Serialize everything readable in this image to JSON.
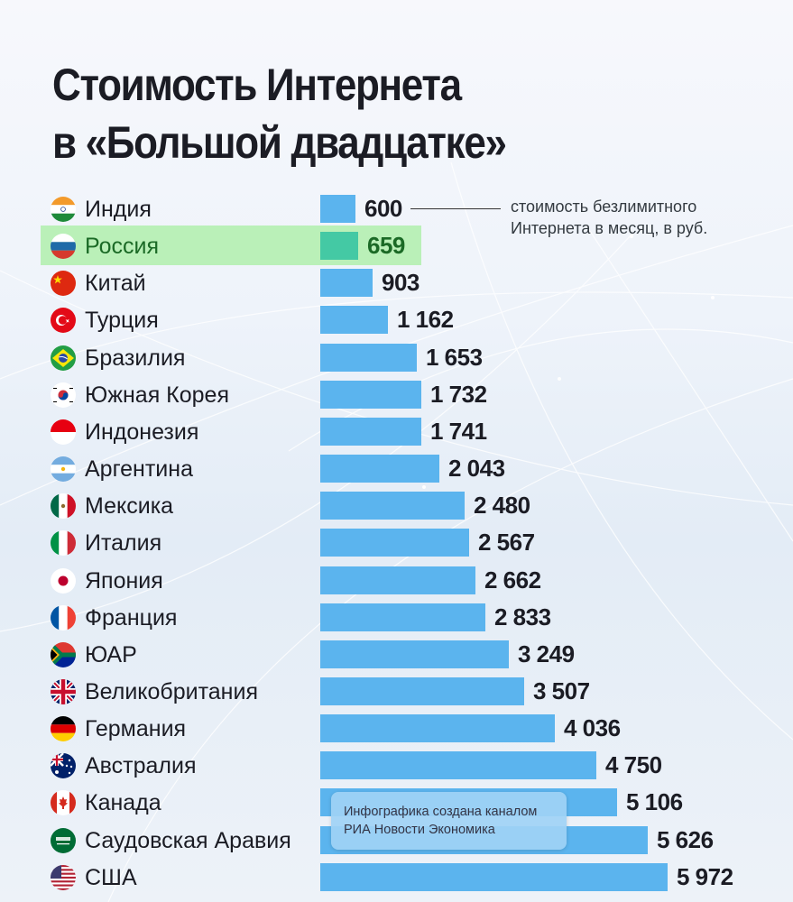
{
  "title": {
    "line1": "Стоимость Интернета",
    "line2": "в «Большой двадцатке»"
  },
  "legend": {
    "line1": "стоимость безлимитного",
    "line2": "Интернета в месяц, в руб."
  },
  "credit": {
    "line1": "Инфографика создана каналом",
    "line2": "РИА Новости Экономика"
  },
  "colors": {
    "bar": "#5bb4ee",
    "highlight_bar": "#44c9a4",
    "highlight_bg": "#b4f0b0",
    "highlight_text": "#1b6a26",
    "text": "#1b1c24"
  },
  "rows": [
    {
      "country": "Индия",
      "value_label": "600",
      "flag": "india-flag-icon"
    },
    {
      "country": "Россия",
      "value_label": "659",
      "flag": "russia-flag-icon",
      "highlighted": true
    },
    {
      "country": "Китай",
      "value_label": "903",
      "flag": "china-flag-icon"
    },
    {
      "country": "Турция",
      "value_label": "1 162",
      "flag": "turkey-flag-icon"
    },
    {
      "country": "Бразилия",
      "value_label": "1 653",
      "flag": "brazil-flag-icon"
    },
    {
      "country": "Южная Корея",
      "value_label": "1 732",
      "flag": "south-korea-flag-icon"
    },
    {
      "country": "Индонезия",
      "value_label": "1 741",
      "flag": "indonesia-flag-icon"
    },
    {
      "country": "Аргентина",
      "value_label": "2 043",
      "flag": "argentina-flag-icon"
    },
    {
      "country": "Мексика",
      "value_label": "2 480",
      "flag": "mexico-flag-icon"
    },
    {
      "country": "Италия",
      "value_label": "2 567",
      "flag": "italy-flag-icon"
    },
    {
      "country": "Япония",
      "value_label": "2 662",
      "flag": "japan-flag-icon"
    },
    {
      "country": "Франция",
      "value_label": "2 833",
      "flag": "france-flag-icon"
    },
    {
      "country": "ЮАР",
      "value_label": "3 249",
      "flag": "south-africa-flag-icon"
    },
    {
      "country": "Великобритания",
      "value_label": "3 507",
      "flag": "uk-flag-icon"
    },
    {
      "country": "Германия",
      "value_label": "4 036",
      "flag": "germany-flag-icon"
    },
    {
      "country": "Австралия",
      "value_label": "4 750",
      "flag": "australia-flag-icon"
    },
    {
      "country": "Канада",
      "value_label": "5 106",
      "flag": "canada-flag-icon"
    },
    {
      "country": "Саудовская Аравия",
      "value_label": "5 626",
      "flag": "saudi-arabia-flag-icon"
    },
    {
      "country": "США",
      "value_label": "5 972",
      "flag": "usa-flag-icon"
    }
  ],
  "chart_data": {
    "type": "bar",
    "orientation": "horizontal",
    "title": "Стоимость Интернета в «Большой двадцатке»",
    "xlabel": "стоимость безлимитного Интернета в месяц, в руб.",
    "ylabel": "",
    "categories": [
      "Индия",
      "Россия",
      "Китай",
      "Турция",
      "Бразилия",
      "Южная Корея",
      "Индонезия",
      "Аргентина",
      "Мексика",
      "Италия",
      "Япония",
      "Франция",
      "ЮАР",
      "Великобритания",
      "Германия",
      "Австралия",
      "Канада",
      "Саудовская Аравия",
      "США"
    ],
    "values": [
      600,
      659,
      903,
      1162,
      1653,
      1732,
      1741,
      2043,
      2480,
      2567,
      2662,
      2833,
      3249,
      3507,
      4036,
      4750,
      5106,
      5626,
      5972
    ],
    "highlighted_category": "Россия",
    "grid": false,
    "legend": "none",
    "annotation": "Инфографика создана каналом РИА Новости Экономика"
  }
}
